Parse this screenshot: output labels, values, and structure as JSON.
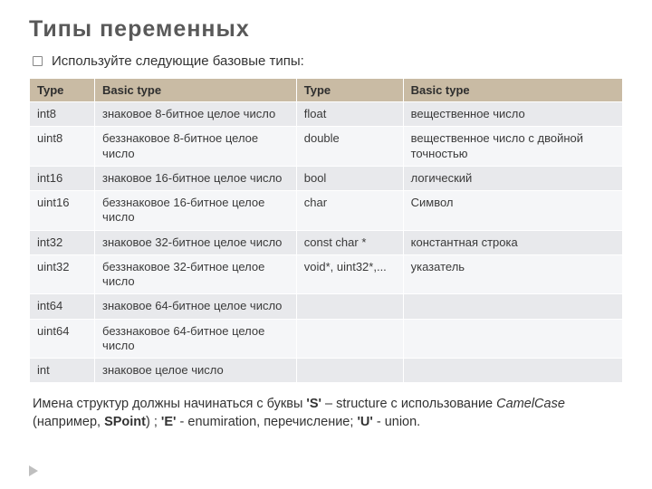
{
  "slide": {
    "title": "Типы переменных",
    "subtitle": "Используйте следующие базовые типы:",
    "note_html": "Имена структур должны начинаться с буквы <b>'S'</b> – structure с использование <span class=\"em\">CamelCase</span> (например, <b>SPoint</b>) ; <b>'E'</b> - enumiration, перечисление; <b>'U'</b> - union."
  },
  "table": {
    "header_bg": "#c9bba4",
    "row_alt_bg_light": "#e8e9ec",
    "row_alt_bg_white": "#f5f6f8",
    "text_color": "#3a3a3a",
    "columns": [
      "Type",
      "Basic type",
      "Type",
      "Basic type"
    ],
    "rows": [
      [
        "int8",
        "знаковое 8-битное целое число",
        "float",
        "вещественное число"
      ],
      [
        "uint8",
        "беззнаковое 8-битное целое число",
        "double",
        "вещественное число с двойной точностью"
      ],
      [
        "int16",
        "знаковое 16-битное целое число",
        "bool",
        "логический"
      ],
      [
        "uint16",
        "беззнаковое 16-битное целое число",
        "char",
        "Символ"
      ],
      [
        "int32",
        "знаковое 32-битное целое число",
        "const char *",
        "константная строка"
      ],
      [
        "uint32",
        "беззнаковое 32-битное целое число",
        "void*, uint32*,...",
        "указатель"
      ],
      [
        "int64",
        "знаковое 64-битное целое число",
        "",
        ""
      ],
      [
        "uint64",
        "беззнаковое 64-битное целое число",
        "",
        ""
      ],
      [
        "int",
        "знаковое целое число",
        "",
        ""
      ]
    ]
  }
}
